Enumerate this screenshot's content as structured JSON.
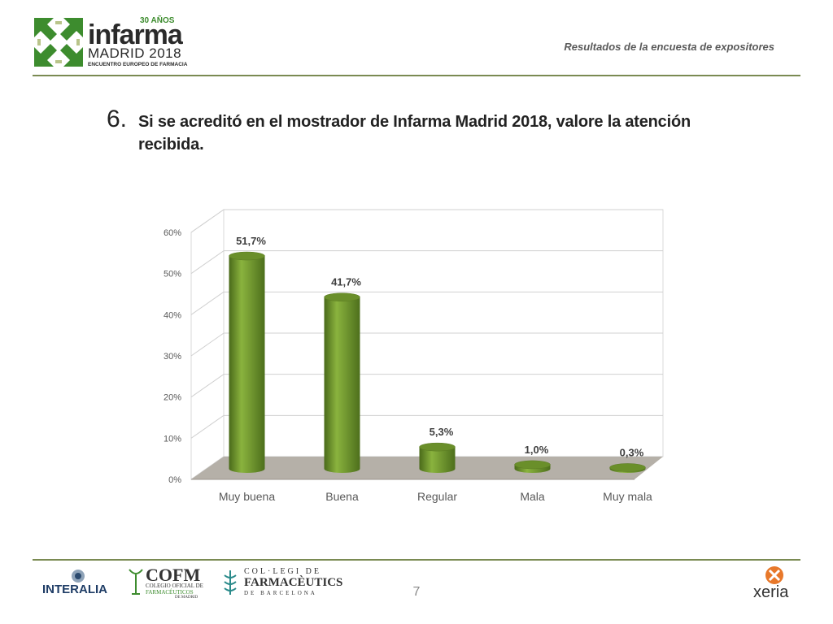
{
  "header": {
    "logo": {
      "anniversary": "30 AÑOS",
      "brand": "infarma",
      "city_year": "MADRID 2018",
      "tagline": "ENCUENTRO EUROPEO DE FARMACIA"
    },
    "subtitle": "Resultados de la encuesta de expositores"
  },
  "question": {
    "number": "6.",
    "text": "Si se acreditó en el mostrador de Infarma Madrid 2018, valore la atención recibida."
  },
  "chart_data": {
    "type": "bar",
    "style": "3d-cylinder",
    "categories": [
      "Muy buena",
      "Buena",
      "Regular",
      "Mala",
      "Muy mala"
    ],
    "values": [
      51.7,
      41.7,
      5.3,
      1.0,
      0.3
    ],
    "data_labels": [
      "51,7%",
      "41,7%",
      "5,3%",
      "1,0%",
      "0,3%"
    ],
    "y_ticks": [
      "0%",
      "10%",
      "20%",
      "30%",
      "40%",
      "50%",
      "60%"
    ],
    "ylim": [
      0,
      60
    ],
    "grid": true,
    "legend": "none",
    "bar_color": "#6a8f2a",
    "floor_color": "#b5b0a8"
  },
  "footer": {
    "logos": {
      "interalia": "INTERALIA",
      "cofm_short": "COFM",
      "cofm_line1": "COLEGIO OFICIAL DE",
      "cofm_line2": "FARMACÉUTICOS",
      "cofm_line3": "DE MADRID",
      "cofb_line1": "COL·LEGI DE",
      "cofb_line2": "FARMACÈUTICS",
      "cofb_line3": "DE BARCELONA",
      "xeria": "xeria"
    },
    "page_number": "7"
  }
}
